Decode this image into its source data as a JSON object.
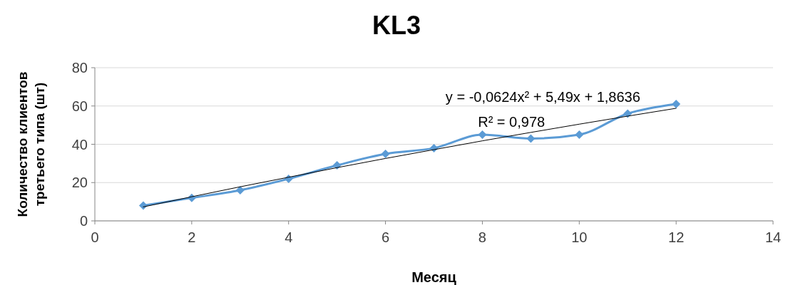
{
  "chart_data": {
    "type": "line",
    "title": "KL3",
    "xlabel": "Месяц",
    "ylabel": "Количество клиентов третьего типа (шт)",
    "xlim": [
      0,
      14
    ],
    "xticks": [
      0,
      2,
      4,
      6,
      8,
      10,
      12,
      14
    ],
    "ylim": [
      0,
      80
    ],
    "yticks": [
      0,
      20,
      40,
      60,
      80
    ],
    "grid": "y",
    "series": [
      {
        "color": "#5b9bd5",
        "marker": "diamond",
        "x": [
          1,
          2,
          3,
          4,
          5,
          6,
          7,
          8,
          9,
          10,
          11,
          12
        ],
        "values": [
          8,
          12,
          16,
          22,
          29,
          35,
          38,
          45,
          43,
          45,
          56,
          61
        ]
      },
      {
        "type": "line",
        "color": "#000000",
        "marker": "none",
        "x": [
          1,
          2,
          3,
          4,
          5,
          6,
          7,
          8,
          9,
          10,
          11,
          12
        ],
        "values": [
          7.3,
          12.6,
          17.8,
          22.8,
          27.8,
          32.6,
          37.2,
          41.8,
          46.2,
          50.5,
          54.7,
          58.8
        ]
      }
    ],
    "annotations": [
      "y = -0,0624x² + 5,49x + 1,8636",
      "R² = 0,978"
    ]
  }
}
